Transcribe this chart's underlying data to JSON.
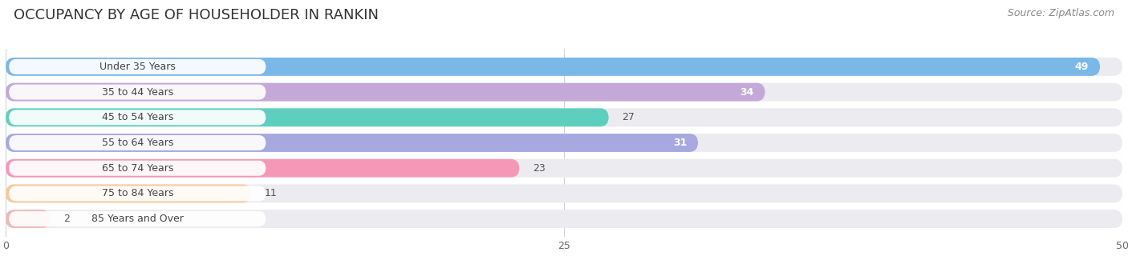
{
  "title": "OCCUPANCY BY AGE OF HOUSEHOLDER IN RANKIN",
  "source": "Source: ZipAtlas.com",
  "categories": [
    "Under 35 Years",
    "35 to 44 Years",
    "45 to 54 Years",
    "55 to 64 Years",
    "65 to 74 Years",
    "75 to 84 Years",
    "85 Years and Over"
  ],
  "values": [
    49,
    34,
    27,
    31,
    23,
    11,
    2
  ],
  "bar_colors": [
    "#7ab8e8",
    "#c4a8d8",
    "#5ecfbf",
    "#a8a8e0",
    "#f598b8",
    "#f8c898",
    "#f0b8b8"
  ],
  "xlim": [
    0,
    50
  ],
  "xticks": [
    0,
    25,
    50
  ],
  "bar_height": 0.72,
  "background_color": "#ffffff",
  "bar_bg_color": "#ebebf0",
  "title_fontsize": 13,
  "label_fontsize": 9,
  "value_fontsize": 9,
  "value_white_threshold": 30
}
